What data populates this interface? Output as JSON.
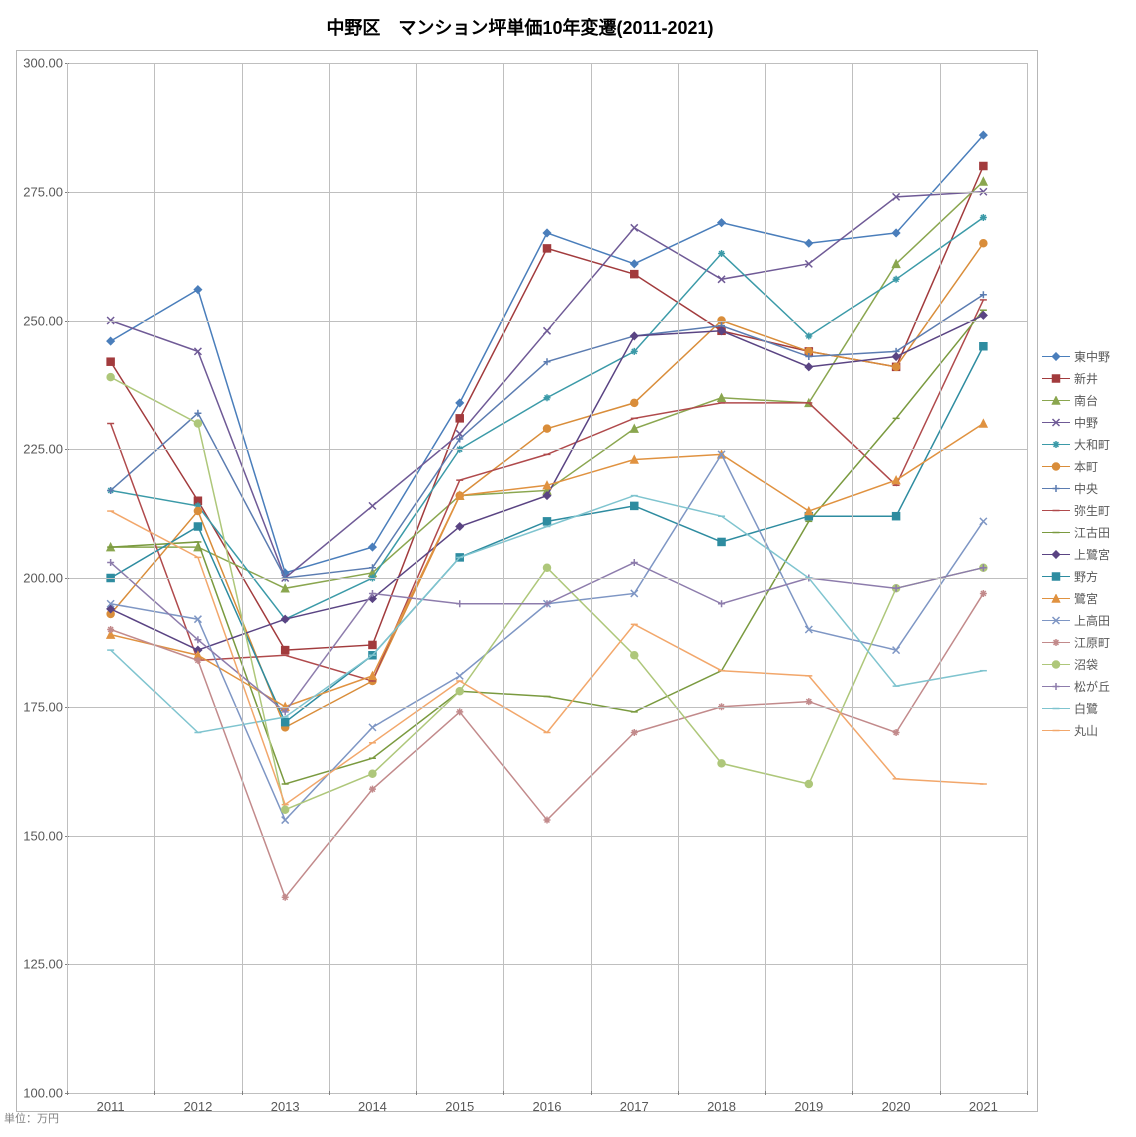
{
  "chart": {
    "type": "line",
    "title": "中野区　マンション坪単価10年変遷(2011-2021)",
    "title_fontsize": 18,
    "unit_label": "単位：万円",
    "background_color": "#ffffff",
    "plot_border_color": "#b7b7b7",
    "grid_color": "#bfbfbf",
    "axis_label_color": "#595959",
    "axis_label_fontsize": 13,
    "legend_fontsize": 12,
    "x": {
      "categories": [
        "2011",
        "2012",
        "2013",
        "2014",
        "2015",
        "2016",
        "2017",
        "2018",
        "2019",
        "2020",
        "2021"
      ]
    },
    "y": {
      "min": 100.0,
      "max": 300.0,
      "tick_step": 25.0,
      "tick_format": "0.00"
    },
    "line_width": 1.5,
    "marker_size": 7,
    "series": [
      {
        "name": "higashi-nakano",
        "label": "東中野",
        "color": "#4a7ebb",
        "marker": "diamond",
        "values": [
          246,
          256,
          201,
          206,
          234,
          267,
          261,
          269,
          265,
          267,
          286
        ]
      },
      {
        "name": "arai",
        "label": "新井",
        "color": "#a23b3d",
        "marker": "square",
        "values": [
          242,
          215,
          186,
          187,
          231,
          264,
          259,
          248,
          244,
          241,
          280
        ]
      },
      {
        "name": "minamidai",
        "label": "南台",
        "color": "#8aa64f",
        "marker": "triangle",
        "values": [
          206,
          206,
          198,
          201,
          216,
          217,
          229,
          235,
          234,
          261,
          277
        ]
      },
      {
        "name": "nakano",
        "label": "中野",
        "color": "#6f5a96",
        "marker": "x",
        "values": [
          250,
          244,
          200,
          214,
          228,
          248,
          268,
          258,
          261,
          274,
          275
        ]
      },
      {
        "name": "yamatocho",
        "label": "大和町",
        "color": "#3b9aa8",
        "marker": "asterisk",
        "values": [
          217,
          214,
          192,
          200,
          225,
          235,
          244,
          263,
          247,
          258,
          270
        ]
      },
      {
        "name": "honcho",
        "label": "本町",
        "color": "#d98d3a",
        "marker": "circle",
        "values": [
          193,
          213,
          171,
          180,
          216,
          229,
          234,
          250,
          244,
          241,
          265
        ]
      },
      {
        "name": "chuo",
        "label": "中央",
        "color": "#5b7cb1",
        "marker": "plus",
        "values": [
          217,
          232,
          200,
          202,
          227,
          242,
          247,
          249,
          243,
          244,
          255
        ]
      },
      {
        "name": "yayoicho",
        "label": "弥生町",
        "color": "#b04a4c",
        "marker": "dash",
        "values": [
          230,
          184,
          185,
          180,
          219,
          224,
          231,
          234,
          234,
          218,
          254
        ]
      },
      {
        "name": "egota",
        "label": "江古田",
        "color": "#7a9a3f",
        "marker": "dash",
        "values": [
          206,
          207,
          160,
          165,
          178,
          177,
          174,
          182,
          211,
          231,
          252
        ]
      },
      {
        "name": "kami-saginomiya",
        "label": "上鷺宮",
        "color": "#5a4483",
        "marker": "diamond",
        "values": [
          194,
          186,
          192,
          196,
          210,
          216,
          247,
          248,
          241,
          243,
          251
        ]
      },
      {
        "name": "nogata",
        "label": "野方",
        "color": "#2e8ca0",
        "marker": "square",
        "values": [
          200,
          210,
          172,
          185,
          204,
          211,
          214,
          207,
          212,
          212,
          245
        ]
      },
      {
        "name": "saginomiya",
        "label": "鷺宮",
        "color": "#e09240",
        "marker": "triangle",
        "values": [
          189,
          185,
          175,
          181,
          216,
          218,
          223,
          224,
          213,
          219,
          230
        ]
      },
      {
        "name": "kamitakada",
        "label": "上高田",
        "color": "#7e96c4",
        "marker": "x",
        "values": [
          195,
          192,
          153,
          171,
          181,
          195,
          197,
          224,
          190,
          186,
          211
        ]
      },
      {
        "name": "eharacho",
        "label": "江原町",
        "color": "#c28a8b",
        "marker": "asterisk",
        "values": [
          190,
          184,
          138,
          159,
          174,
          153,
          170,
          175,
          176,
          170,
          197
        ]
      },
      {
        "name": "numabukuro",
        "label": "沼袋",
        "color": "#aec77a",
        "marker": "circle",
        "values": [
          239,
          230,
          155,
          162,
          178,
          202,
          185,
          164,
          160,
          198,
          202
        ]
      },
      {
        "name": "matsugaoka",
        "label": "松が丘",
        "color": "#8d7cac",
        "marker": "plus",
        "values": [
          203,
          188,
          174,
          197,
          195,
          195,
          203,
          195,
          200,
          198,
          202
        ]
      },
      {
        "name": "shirasagi",
        "label": "白鷺",
        "color": "#7fc4cf",
        "marker": "dash",
        "values": [
          186,
          170,
          173,
          185,
          204,
          210,
          216,
          212,
          200,
          179,
          182
        ]
      },
      {
        "name": "maruyama",
        "label": "丸山",
        "color": "#f2a76b",
        "marker": "dash",
        "values": [
          213,
          204,
          156,
          168,
          180,
          170,
          191,
          182,
          181,
          161,
          160
        ]
      }
    ]
  }
}
